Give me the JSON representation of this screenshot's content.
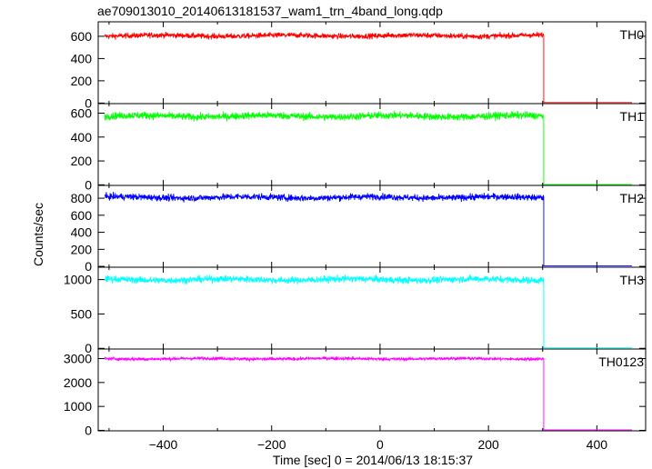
{
  "chart_data": {
    "type": "line",
    "title": "ae709013010_20140613181537_wam1_trn_4band_long.qdp",
    "xlabel": "Time [sec] 0 = 2014/06/13 18:15:37",
    "ylabel": "Counts/sec",
    "xlim": [
      -520,
      490
    ],
    "xticks": [
      -400,
      -200,
      0,
      200,
      400
    ],
    "xtick_labels": [
      "−400",
      "−200",
      "0",
      "200",
      "400"
    ],
    "step_time": 302,
    "x_end": 465,
    "x_start": -508,
    "panels": [
      {
        "name": "TH0",
        "color": "#ff0000",
        "ylim": [
          -5,
          730
        ],
        "yticks": [
          0,
          200,
          400,
          600
        ],
        "mean": 605,
        "noise": 22,
        "after": 5
      },
      {
        "name": "TH1",
        "color": "#00ff00",
        "ylim": [
          -5,
          680
        ],
        "yticks": [
          0,
          200,
          400,
          600
        ],
        "mean": 575,
        "noise": 28,
        "after": 3
      },
      {
        "name": "TH2",
        "color": "#0000ff",
        "ylim": [
          -10,
          950
        ],
        "yticks": [
          0,
          200,
          400,
          600,
          800
        ],
        "mean": 810,
        "noise": 35,
        "after": 5
      },
      {
        "name": "TH3",
        "color": "#00ffff",
        "ylim": [
          -10,
          1180
        ],
        "yticks": [
          0,
          500,
          1000
        ],
        "mean": 1000,
        "noise": 45,
        "after": 8
      },
      {
        "name": "TH0123",
        "color": "#ff00ff",
        "ylim": [
          -20,
          3400
        ],
        "yticks": [
          0,
          1000,
          2000,
          3000
        ],
        "mean": 2995,
        "noise": 60,
        "after": 20
      }
    ]
  }
}
